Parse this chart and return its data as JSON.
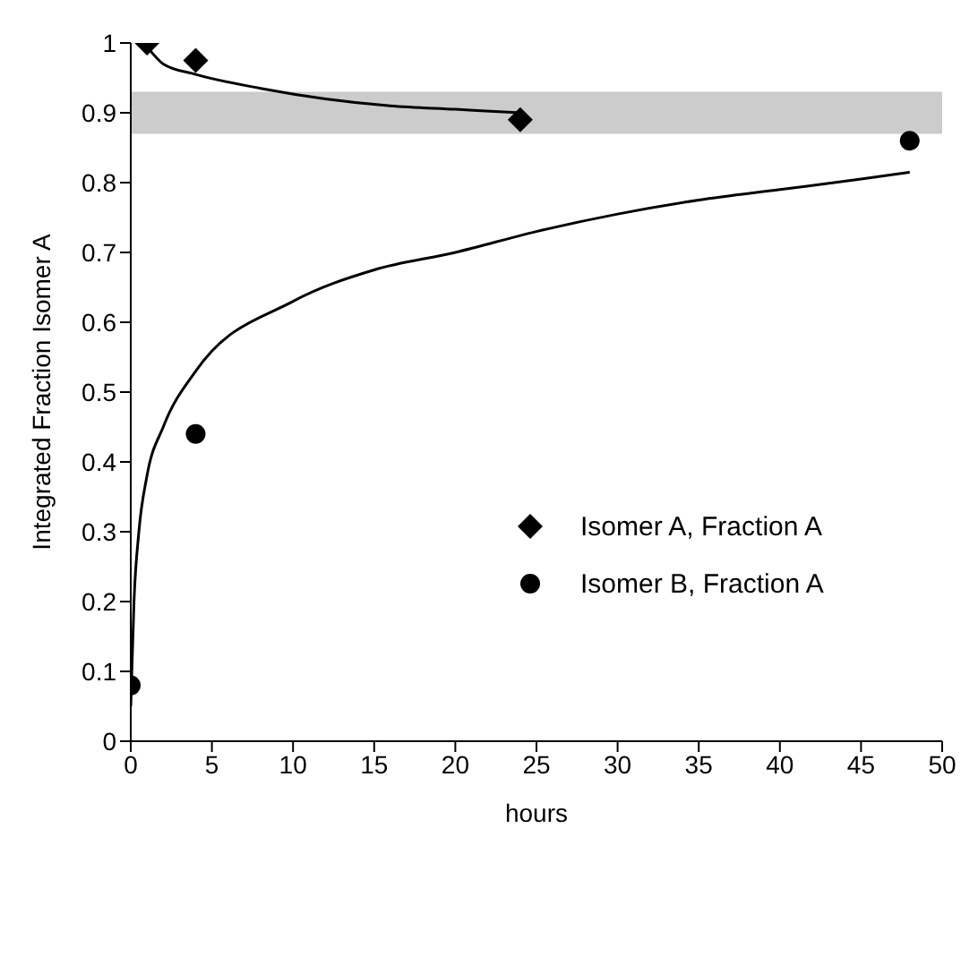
{
  "chart_data": {
    "type": "scatter",
    "xlabel": "hours",
    "ylabel": "Integrated Fraction Isomer A",
    "xlim": [
      0,
      50
    ],
    "xticks": [
      0,
      5,
      10,
      15,
      20,
      25,
      30,
      35,
      40,
      45,
      50
    ],
    "ylim": [
      0,
      1
    ],
    "yticks": [
      0,
      0.1,
      0.2,
      0.3,
      0.4,
      0.5,
      0.6,
      0.7,
      0.8,
      0.9,
      1
    ],
    "legend": "right",
    "grid": false,
    "bands": [
      {
        "axis": "y",
        "from": 0.87,
        "to": 0.93,
        "color": "#cccccc"
      }
    ],
    "series": [
      {
        "name": "Isomer A, Fraction A",
        "color": "#000000",
        "marker": "diamond",
        "x": [
          1,
          4,
          24
        ],
        "values": [
          1.0,
          0.975,
          0.89
        ]
      },
      {
        "name": "Isomer B, Fraction A",
        "color": "#000000",
        "marker": "circle",
        "x": [
          0,
          4,
          48
        ],
        "values": [
          0.08,
          0.44,
          0.86
        ]
      },
      {
        "type": "line",
        "color": "#000000",
        "marker": "none",
        "x": [
          1,
          2,
          4,
          8,
          12,
          16,
          20,
          24
        ],
        "values": [
          0.995,
          0.97,
          0.955,
          0.935,
          0.92,
          0.91,
          0.905,
          0.9
        ]
      },
      {
        "type": "line",
        "color": "#000000",
        "marker": "none",
        "x": [
          0,
          0.2,
          0.5,
          1,
          2,
          4,
          10,
          15,
          20,
          25,
          30,
          35,
          40,
          45,
          48
        ],
        "values": [
          0.05,
          0.2,
          0.3,
          0.38,
          0.45,
          0.53,
          0.63,
          0.675,
          0.7,
          0.73,
          0.755,
          0.775,
          0.79,
          0.805,
          0.815
        ]
      }
    ]
  }
}
